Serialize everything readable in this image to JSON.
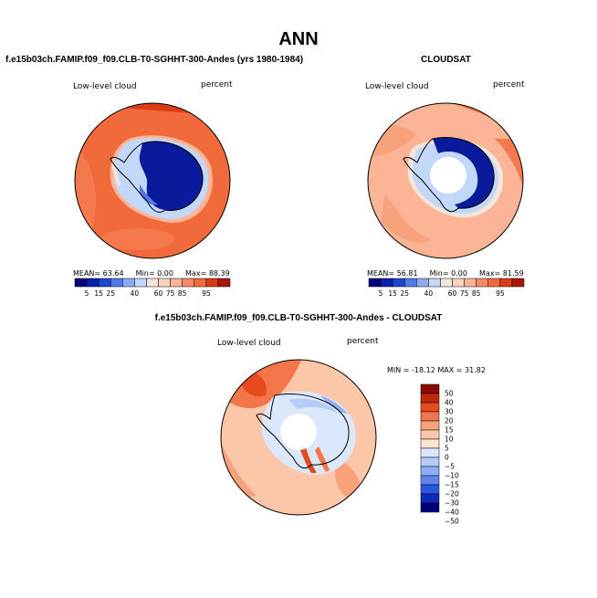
{
  "title": "ANN",
  "colors": {
    "scale": [
      "#00007f",
      "#0a1fb0",
      "#1e46d4",
      "#5078e6",
      "#8caaf0",
      "#c3d7f8",
      "#f2e6dc",
      "#fcd2bc",
      "#fbb496",
      "#f78a64",
      "#f06a3c",
      "#dc3a14",
      "#a8180a"
    ],
    "diff_scale": [
      "#00007f",
      "#0b2bbd",
      "#2a56e0",
      "#5c86ee",
      "#8eaef5",
      "#b5ccf8",
      "#dbe8fb",
      "#fbe4d2",
      "#fbc7a8",
      "#f8a27c",
      "#f2764a",
      "#e64a1e",
      "#c02808",
      "#8a0b02"
    ],
    "land_blue": "#0a1a9c",
    "hole": "#ffffff"
  },
  "panels": {
    "model": {
      "case_title": "f.e15b03ch.FAMIP.f09_f09.CLB-T0-SGHHT-300-Andes (yrs 1980-1984)",
      "field_label": "Low-level cloud",
      "units_label": "percent",
      "mean_label": "MEAN=",
      "mean_value": "63.64",
      "min_label": "Min=",
      "min_value": "0.00",
      "max_label": "Max=",
      "max_value": "88.39",
      "colorbar_ticks": [
        "5",
        "15",
        "25",
        "40",
        "60",
        "75",
        "85",
        "95"
      ]
    },
    "obs": {
      "case_title": "CLOUDSAT",
      "field_label": "Low-level cloud",
      "units_label": "percent",
      "mean_label": "MEAN=",
      "mean_value": "56.81",
      "min_label": "Min=",
      "min_value": "0.00",
      "max_label": "Max=",
      "max_value": "81.59",
      "colorbar_ticks": [
        "5",
        "15",
        "25",
        "40",
        "60",
        "75",
        "85",
        "95"
      ]
    },
    "diff": {
      "case_title": "f.e15b03ch.FAMIP.f09_f09.CLB-T0-SGHHT-300-Andes - CLOUDSAT",
      "field_label": "Low-level cloud",
      "units_label": "percent",
      "minmax_text": "MIN = -18.12 MAX =  31.82",
      "colorbar_ticks": [
        "50",
        "40",
        "30",
        "20",
        "15",
        "10",
        "5",
        "0",
        "−5",
        "−10",
        "−15",
        "−20",
        "−30",
        "−40",
        "−50"
      ]
    }
  }
}
